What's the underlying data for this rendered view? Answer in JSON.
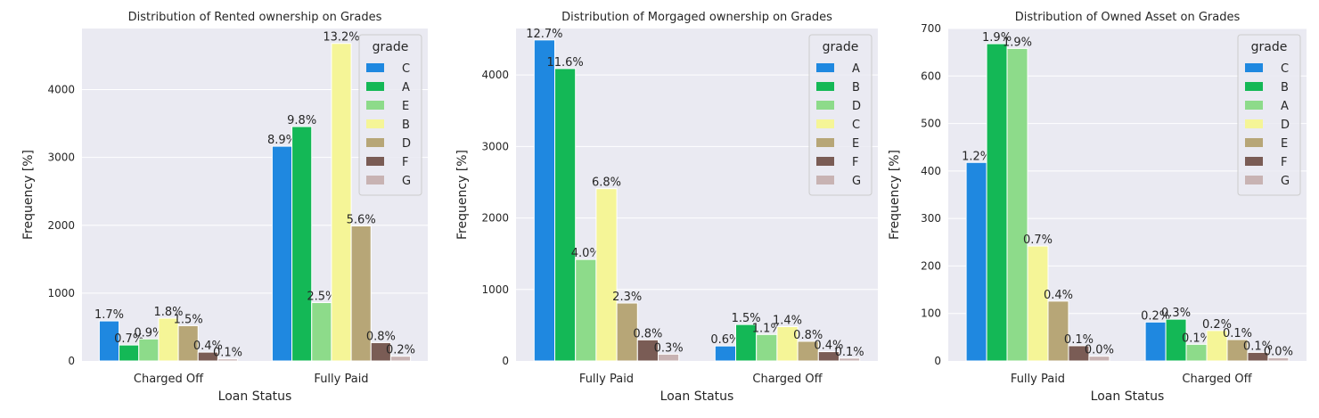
{
  "colors": {
    "background": "#ffffff",
    "plot_bg": "#eaeaf2",
    "grid": "#ffffff",
    "text": "#262626",
    "grade_palette": [
      "#1f88e0",
      "#14b856",
      "#8ddb8a",
      "#f5f597",
      "#b7a677",
      "#7a5c55",
      "#c8b3b3"
    ]
  },
  "chart_data": [
    {
      "type": "bar",
      "title": "Distribution of Rented ownership on Grades",
      "xlabel": "Loan Status",
      "ylabel": "Frequency [%]",
      "ylim": [
        0,
        4900
      ],
      "yticks": [
        0,
        1000,
        2000,
        3000,
        4000
      ],
      "grid": true,
      "legend_title": "grade",
      "legend_position": "top-right",
      "categories": [
        "Charged Off",
        "Fully Paid"
      ],
      "series": [
        {
          "name": "C",
          "values": [
            590,
            3165
          ],
          "labels": [
            "1.7%",
            "8.9%"
          ]
        },
        {
          "name": "A",
          "values": [
            235,
            3455
          ],
          "labels": [
            "0.7%",
            "9.8%"
          ]
        },
        {
          "name": "E",
          "values": [
            325,
            860
          ],
          "labels": [
            "0.9%",
            "2.5%"
          ]
        },
        {
          "name": "B",
          "values": [
            630,
            4680
          ],
          "labels": [
            "1.8%",
            "13.2%"
          ]
        },
        {
          "name": "D",
          "values": [
            520,
            1990
          ],
          "labels": [
            "1.5%",
            "5.6%"
          ]
        },
        {
          "name": "F",
          "values": [
            130,
            270
          ],
          "labels": [
            "0.4%",
            "0.8%"
          ]
        },
        {
          "name": "G",
          "values": [
            30,
            70
          ],
          "labels": [
            "0.1%",
            "0.2%"
          ]
        }
      ]
    },
    {
      "type": "bar",
      "title": "Distribution of Morgaged ownership on Grades",
      "xlabel": "Loan Status",
      "ylabel": "Frequency [%]",
      "ylim": [
        0,
        4650
      ],
      "yticks": [
        0,
        1000,
        2000,
        3000,
        4000
      ],
      "grid": true,
      "legend_title": "grade",
      "legend_position": "top-right",
      "categories": [
        "Fully Paid",
        "Charged Off"
      ],
      "series": [
        {
          "name": "A",
          "values": [
            4490,
            210
          ],
          "labels": [
            "12.7%",
            "0.6%"
          ]
        },
        {
          "name": "B",
          "values": [
            4090,
            510
          ],
          "labels": [
            "11.6%",
            "1.5%"
          ]
        },
        {
          "name": "D",
          "values": [
            1420,
            370
          ],
          "labels": [
            "4.0%",
            "1.1%"
          ]
        },
        {
          "name": "C",
          "values": [
            2410,
            480
          ],
          "labels": [
            "6.8%",
            "1.4%"
          ]
        },
        {
          "name": "E",
          "values": [
            810,
            275
          ],
          "labels": [
            "2.3%",
            "0.8%"
          ]
        },
        {
          "name": "F",
          "values": [
            295,
            130
          ],
          "labels": [
            "0.8%",
            "0.4%"
          ]
        },
        {
          "name": "G",
          "values": [
            95,
            40
          ],
          "labels": [
            "0.3%",
            "0.1%"
          ]
        }
      ]
    },
    {
      "type": "bar",
      "title": "Distribution of Owned Asset on Grades",
      "xlabel": "Loan Status",
      "ylabel": "Frequency [%]",
      "ylim": [
        0,
        700
      ],
      "yticks": [
        0,
        100,
        200,
        300,
        400,
        500,
        600,
        700
      ],
      "grid": true,
      "legend_title": "grade",
      "legend_position": "top-right",
      "categories": [
        "Fully Paid",
        "Charged Off"
      ],
      "series": [
        {
          "name": "C",
          "values": [
            418,
            82
          ],
          "labels": [
            "1.2%",
            "0.2%"
          ]
        },
        {
          "name": "B",
          "values": [
            668,
            88
          ],
          "labels": [
            "1.9%",
            "0.3%"
          ]
        },
        {
          "name": "A",
          "values": [
            658,
            35
          ],
          "labels": [
            "1.9%",
            "0.1%"
          ]
        },
        {
          "name": "D",
          "values": [
            242,
            64
          ],
          "labels": [
            "0.7%",
            "0.2%"
          ]
        },
        {
          "name": "E",
          "values": [
            126,
            45
          ],
          "labels": [
            "0.4%",
            "0.1%"
          ]
        },
        {
          "name": "F",
          "values": [
            32,
            18
          ],
          "labels": [
            "0.1%",
            "0.1%"
          ]
        },
        {
          "name": "G",
          "values": [
            10,
            7
          ],
          "labels": [
            "0.0%",
            "0.0%"
          ]
        }
      ]
    }
  ]
}
